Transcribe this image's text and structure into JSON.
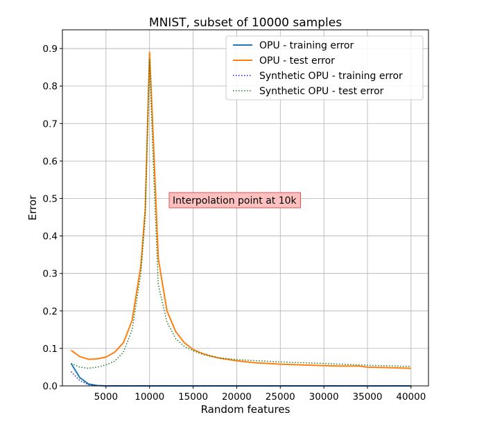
{
  "chart_data": {
    "type": "line",
    "title": "MNIST, subset of 10000 samples",
    "xlabel": "Random features",
    "ylabel": "Error",
    "xlim": [
      0,
      42000
    ],
    "ylim": [
      0,
      0.95
    ],
    "xticks": [
      5000,
      10000,
      15000,
      20000,
      25000,
      30000,
      35000,
      40000
    ],
    "xtick_labels": [
      "5000",
      "10000",
      "15000",
      "20000",
      "25000",
      "30000",
      "35000",
      "40000"
    ],
    "yticks": [
      0,
      0.1,
      0.2,
      0.3,
      0.4,
      0.5,
      0.6,
      0.7,
      0.8,
      0.9
    ],
    "ytick_labels": [
      "0.0",
      "0.1",
      "0.2",
      "0.3",
      "0.4",
      "0.5",
      "0.6",
      "0.7",
      "0.8",
      "0.9"
    ],
    "grid": true,
    "legend_position": "top-right",
    "annotation": {
      "text": "Interpolation point at 10k",
      "x": 12500,
      "y": 0.485
    },
    "series": [
      {
        "name": "OPU - training error",
        "color": "#1f77b4",
        "style": "solid",
        "x": [
          1000,
          2000,
          3000,
          4000,
          5000,
          6000,
          7000,
          8000,
          9000,
          10000,
          12000,
          15000,
          20000,
          25000,
          30000,
          35000,
          40000
        ],
        "y": [
          0.06,
          0.022,
          0.005,
          0.001,
          0.0,
          0.0,
          0.0,
          0.0,
          0.0,
          0.0,
          0.0,
          0.0,
          0.0,
          0.0,
          0.0,
          0.0,
          0.0
        ]
      },
      {
        "name": "OPU - test error",
        "color": "#ff7f0e",
        "style": "solid",
        "x": [
          1000,
          2000,
          3000,
          4000,
          5000,
          6000,
          7000,
          8000,
          9000,
          9500,
          10000,
          10500,
          11000,
          12000,
          13000,
          14000,
          15000,
          16000,
          17000,
          18000,
          20000,
          22000,
          25000,
          30000,
          32000,
          34000,
          35000,
          37000,
          40000
        ],
        "y": [
          0.095,
          0.078,
          0.071,
          0.072,
          0.077,
          0.09,
          0.115,
          0.175,
          0.32,
          0.47,
          0.89,
          0.62,
          0.34,
          0.2,
          0.145,
          0.115,
          0.097,
          0.087,
          0.08,
          0.074,
          0.067,
          0.062,
          0.058,
          0.054,
          0.053,
          0.053,
          0.05,
          0.049,
          0.047
        ]
      },
      {
        "name": "Synthetic OPU - training error",
        "color": "#1f1fd0",
        "style": "dotted",
        "x": [
          1000,
          2000,
          3000,
          4000,
          5000,
          6000,
          8000,
          10000,
          15000,
          20000,
          25000,
          30000,
          35000,
          40000
        ],
        "y": [
          0.038,
          0.014,
          0.003,
          0.001,
          0.0,
          0.0,
          0.0,
          0.0,
          0.0,
          0.0,
          0.0,
          0.0,
          0.0,
          0.0
        ]
      },
      {
        "name": "Synthetic OPU - test error",
        "color": "#1a7a1a",
        "style": "dotted",
        "x": [
          1000,
          2000,
          3000,
          4000,
          5000,
          6000,
          7000,
          8000,
          9000,
          9500,
          10000,
          10500,
          11000,
          12000,
          13000,
          14000,
          15000,
          16000,
          17000,
          18000,
          20000,
          25000,
          30000,
          35000,
          40000
        ],
        "y": [
          0.06,
          0.05,
          0.047,
          0.05,
          0.056,
          0.066,
          0.09,
          0.15,
          0.3,
          0.45,
          0.87,
          0.55,
          0.27,
          0.17,
          0.126,
          0.105,
          0.094,
          0.085,
          0.079,
          0.075,
          0.07,
          0.064,
          0.06,
          0.055,
          0.052
        ]
      }
    ]
  }
}
